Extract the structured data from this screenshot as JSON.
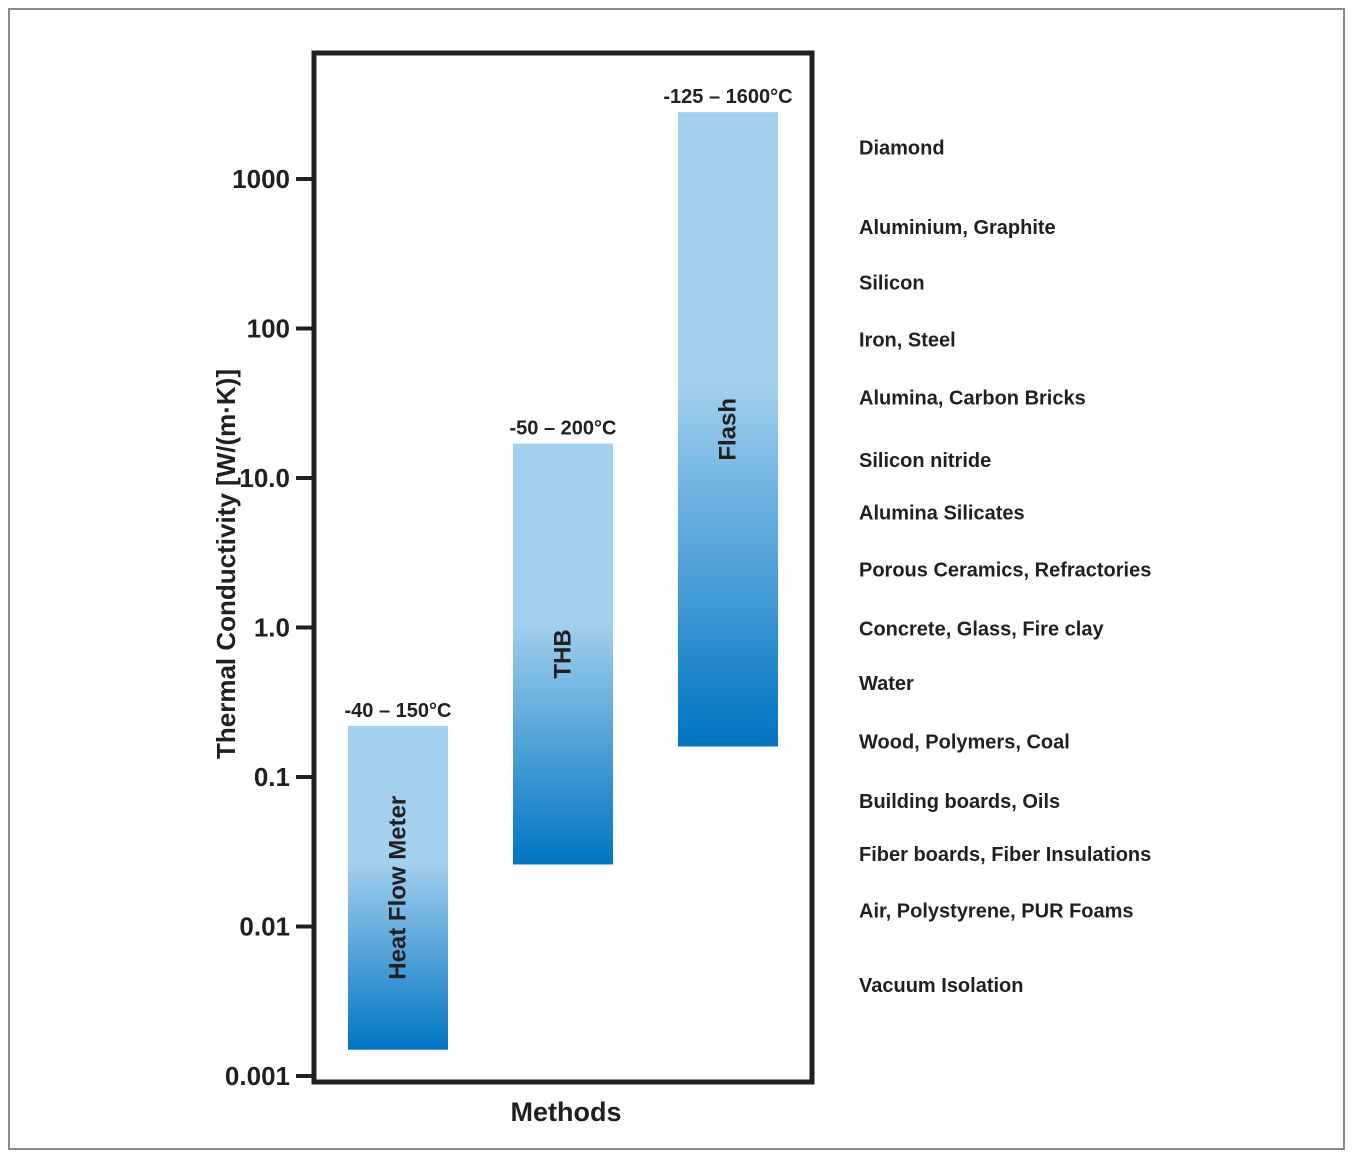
{
  "chart_data": {
    "type": "bar",
    "xlabel": "Methods",
    "ylabel": "Thermal Conductivity [W/(m·K)]",
    "y_scale": "log",
    "ylim": [
      0.001,
      5000
    ],
    "y_ticks": [
      {
        "value": 0.001,
        "label": "0.001"
      },
      {
        "value": 0.01,
        "label": "0.01"
      },
      {
        "value": 0.1,
        "label": "0.1"
      },
      {
        "value": 1,
        "label": "1.0"
      },
      {
        "value": 10,
        "label": "10.0"
      },
      {
        "value": 100,
        "label": "100"
      },
      {
        "value": 1000,
        "label": "1000"
      }
    ],
    "bars": [
      {
        "name": "Heat Flow Meter",
        "low": 0.0015,
        "high": 0.22,
        "range_label": "-40 – 150°C"
      },
      {
        "name": "THB",
        "low": 0.026,
        "high": 17,
        "range_label": "-50 – 200°C"
      },
      {
        "name": "Flash",
        "low": 0.16,
        "high": 2800,
        "range_label": "-125 – 1600°C"
      }
    ],
    "materials": [
      {
        "label": "Diamond",
        "value": 1600
      },
      {
        "label": "Aluminium, Graphite",
        "value": 470
      },
      {
        "label": "Silicon",
        "value": 200
      },
      {
        "label": "Iron, Steel",
        "value": 83
      },
      {
        "label": "Alumina, Carbon Bricks",
        "value": 34
      },
      {
        "label": "Silicon nitride",
        "value": 13
      },
      {
        "label": "Alumina Silicates",
        "value": 5.8
      },
      {
        "label": "Porous Ceramics, Refractories",
        "value": 2.4
      },
      {
        "label": "Concrete, Glass, Fire clay",
        "value": 0.97
      },
      {
        "label": "Water",
        "value": 0.42
      },
      {
        "label": "Wood, Polymers, Coal",
        "value": 0.17
      },
      {
        "label": "Building boards, Oils",
        "value": 0.068
      },
      {
        "label": "Fiber boards, Fiber Insulations",
        "value": 0.03
      },
      {
        "label": "Air, Polystyrene, PUR Foams",
        "value": 0.0126
      },
      {
        "label": "Vacuum Isolation",
        "value": 0.004
      }
    ],
    "colors": {
      "bar_top": "#a3d0ee",
      "bar_bottom": "#0074c2",
      "axis": "#231f20",
      "frame": "#8a8a8a"
    }
  }
}
